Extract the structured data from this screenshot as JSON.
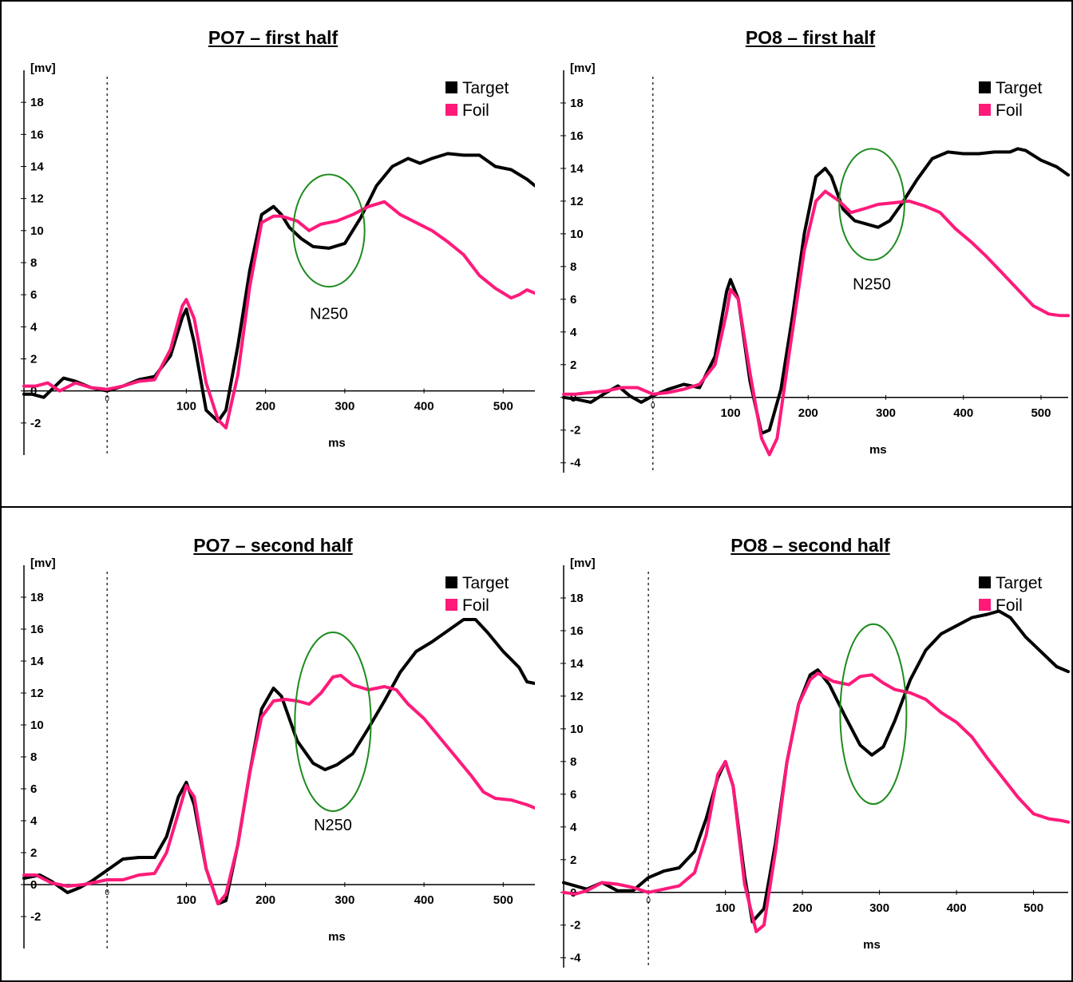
{
  "colors": {
    "target": "#000000",
    "foil": "#ff1a7a",
    "annotation": "#1e8c1e",
    "border": "#000000"
  },
  "chart_data": [
    {
      "type": "line",
      "title": "PO7 – first half",
      "ylabel": "[mv]",
      "xlabel": "ms",
      "xlim": [
        -105,
        540
      ],
      "ylim": [
        -4,
        20
      ],
      "yticks": [
        -2,
        0,
        2,
        4,
        6,
        8,
        10,
        12,
        14,
        16,
        18
      ],
      "yticklabels": [
        "-2",
        "0",
        "2",
        "4",
        "6",
        "8",
        "10",
        "12",
        "14",
        "16",
        "18"
      ],
      "xticks": [
        0,
        100,
        200,
        300,
        400,
        500
      ],
      "xticklabels": [
        "0",
        "100",
        "200",
        "300",
        "400",
        "500"
      ],
      "zero_line_ms": 0,
      "legend": [
        "Target",
        "Foil"
      ],
      "legend_position": "top-right",
      "annotation": {
        "text": "N250",
        "center": [
          280,
          10
        ],
        "rx": 45,
        "ry": 3.5,
        "label_at": [
          280,
          4.5
        ]
      },
      "series": [
        {
          "name": "Target",
          "x": [
            -105,
            -95,
            -80,
            -55,
            -40,
            -20,
            0,
            20,
            40,
            60,
            80,
            95,
            100,
            110,
            125,
            140,
            150,
            165,
            180,
            195,
            210,
            220,
            230,
            245,
            260,
            280,
            300,
            320,
            340,
            360,
            380,
            395,
            410,
            430,
            450,
            470,
            490,
            510,
            530,
            540
          ],
          "y": [
            -0.2,
            -0.2,
            -0.4,
            0.8,
            0.6,
            0.2,
            0.0,
            0.3,
            0.7,
            0.9,
            2.2,
            4.6,
            5.1,
            3.0,
            -1.2,
            -1.9,
            -1.2,
            2.8,
            7.5,
            11.0,
            11.5,
            11.0,
            10.2,
            9.5,
            9.0,
            8.9,
            9.2,
            10.8,
            12.8,
            14.0,
            14.5,
            14.2,
            14.5,
            14.8,
            14.7,
            14.7,
            14.0,
            13.8,
            13.2,
            12.8
          ]
        },
        {
          "name": "Foil",
          "x": [
            -105,
            -90,
            -75,
            -60,
            -40,
            -20,
            0,
            20,
            40,
            60,
            80,
            95,
            100,
            110,
            125,
            140,
            150,
            165,
            180,
            195,
            210,
            220,
            240,
            255,
            270,
            290,
            310,
            330,
            350,
            370,
            390,
            410,
            430,
            450,
            470,
            490,
            510,
            520,
            530,
            540
          ],
          "y": [
            0.3,
            0.3,
            0.5,
            0.0,
            0.5,
            0.2,
            0.1,
            0.3,
            0.6,
            0.7,
            2.6,
            5.3,
            5.7,
            4.5,
            0.5,
            -1.8,
            -2.3,
            1.0,
            6.5,
            10.5,
            10.9,
            10.9,
            10.6,
            10.0,
            10.4,
            10.6,
            11.0,
            11.5,
            11.8,
            11.0,
            10.5,
            10.0,
            9.3,
            8.5,
            7.2,
            6.4,
            5.8,
            6.0,
            6.3,
            6.1
          ]
        }
      ]
    },
    {
      "type": "line",
      "title": "PO8 – first half",
      "ylabel": "[mv]",
      "xlabel": "ms",
      "xlim": [
        -115,
        535
      ],
      "ylim": [
        -4.6,
        20
      ],
      "yticks": [
        -4,
        -2,
        0,
        2,
        4,
        6,
        8,
        10,
        12,
        14,
        16,
        18
      ],
      "yticklabels": [
        "-4",
        "-2",
        "0",
        "2",
        "4",
        "6",
        "8",
        "10",
        "12",
        "14",
        "16",
        "18"
      ],
      "xticks": [
        0,
        100,
        200,
        300,
        400,
        500
      ],
      "xticklabels": [
        "0",
        "100",
        "200",
        "300",
        "400",
        "500"
      ],
      "zero_line_ms": 0,
      "legend": [
        "Target",
        "Foil"
      ],
      "legend_position": "top-right",
      "annotation": {
        "text": "N250",
        "center": [
          282,
          11.8
        ],
        "rx": 42,
        "ry": 3.4,
        "label_at": [
          282,
          6.6
        ]
      },
      "series": [
        {
          "name": "Target",
          "x": [
            -115,
            -100,
            -80,
            -60,
            -45,
            -30,
            -15,
            0,
            20,
            40,
            60,
            80,
            95,
            100,
            110,
            125,
            140,
            150,
            165,
            180,
            195,
            210,
            222,
            230,
            245,
            260,
            275,
            290,
            305,
            320,
            340,
            360,
            380,
            400,
            420,
            440,
            460,
            470,
            480,
            500,
            520,
            535
          ],
          "y": [
            0.0,
            -0.1,
            -0.3,
            0.3,
            0.7,
            0.1,
            -0.3,
            0.1,
            0.5,
            0.8,
            0.6,
            2.5,
            6.5,
            7.2,
            6.0,
            1.0,
            -2.2,
            -2.0,
            0.5,
            5.0,
            10.0,
            13.5,
            14.0,
            13.5,
            11.5,
            10.8,
            10.6,
            10.4,
            10.8,
            11.8,
            13.3,
            14.6,
            15.0,
            14.9,
            14.9,
            15.0,
            15.0,
            15.2,
            15.1,
            14.5,
            14.1,
            13.6
          ]
        },
        {
          "name": "Foil",
          "x": [
            -115,
            -100,
            -80,
            -60,
            -40,
            -20,
            0,
            20,
            40,
            60,
            80,
            95,
            100,
            110,
            125,
            140,
            150,
            160,
            175,
            195,
            210,
            222,
            240,
            255,
            270,
            290,
            310,
            330,
            350,
            370,
            390,
            410,
            430,
            450,
            470,
            490,
            510,
            525,
            535
          ],
          "y": [
            0.2,
            0.2,
            0.3,
            0.4,
            0.6,
            0.6,
            0.2,
            0.3,
            0.5,
            0.8,
            2.0,
            5.2,
            6.6,
            6.0,
            1.5,
            -2.5,
            -3.5,
            -2.5,
            2.5,
            9.0,
            12.0,
            12.6,
            12.0,
            11.3,
            11.5,
            11.8,
            11.9,
            12.0,
            11.7,
            11.3,
            10.3,
            9.5,
            8.6,
            7.6,
            6.6,
            5.6,
            5.1,
            5.0,
            5.0
          ]
        }
      ]
    },
    {
      "type": "line",
      "title": "PO7 – second half",
      "ylabel": "[mv]",
      "xlabel": "ms",
      "xlim": [
        -105,
        540
      ],
      "ylim": [
        -4,
        20
      ],
      "yticks": [
        -2,
        0,
        2,
        4,
        6,
        8,
        10,
        12,
        14,
        16,
        18
      ],
      "yticklabels": [
        "-2",
        "0",
        "2",
        "4",
        "6",
        "8",
        "10",
        "12",
        "14",
        "16",
        "18"
      ],
      "xticks": [
        0,
        100,
        200,
        300,
        400,
        500
      ],
      "xticklabels": [
        "0",
        "100",
        "200",
        "300",
        "400",
        "500"
      ],
      "zero_line_ms": 0,
      "legend": [
        "Target",
        "Foil"
      ],
      "legend_position": "top-right",
      "annotation": {
        "text": "N250",
        "center": [
          285,
          10.2
        ],
        "rx": 48,
        "ry": 5.6,
        "label_at": [
          285,
          3.4
        ]
      },
      "series": [
        {
          "name": "Target",
          "x": [
            -105,
            -85,
            -70,
            -50,
            -35,
            -20,
            0,
            20,
            40,
            60,
            75,
            90,
            100,
            110,
            125,
            140,
            150,
            165,
            180,
            195,
            210,
            220,
            240,
            260,
            275,
            290,
            310,
            330,
            350,
            370,
            390,
            410,
            430,
            450,
            465,
            480,
            500,
            520,
            530,
            540
          ],
          "y": [
            0.4,
            0.6,
            0.2,
            -0.5,
            -0.2,
            0.2,
            0.9,
            1.6,
            1.7,
            1.7,
            3.0,
            5.5,
            6.4,
            5.0,
            1.0,
            -1.2,
            -1.0,
            2.5,
            7.0,
            11.0,
            12.3,
            11.8,
            9.0,
            7.6,
            7.2,
            7.5,
            8.2,
            9.8,
            11.5,
            13.3,
            14.6,
            15.2,
            15.9,
            16.6,
            16.6,
            15.8,
            14.6,
            13.6,
            12.7,
            12.6
          ]
        },
        {
          "name": "Foil",
          "x": [
            -105,
            -90,
            -70,
            -50,
            -30,
            -10,
            0,
            20,
            40,
            60,
            75,
            90,
            100,
            110,
            125,
            140,
            150,
            165,
            180,
            195,
            210,
            225,
            240,
            255,
            270,
            285,
            295,
            310,
            330,
            350,
            365,
            380,
            400,
            420,
            440,
            460,
            475,
            490,
            510,
            530,
            540
          ],
          "y": [
            0.6,
            0.6,
            0.1,
            -0.1,
            0.0,
            0.2,
            0.3,
            0.3,
            0.6,
            0.7,
            2.0,
            4.5,
            6.2,
            5.5,
            1.0,
            -1.2,
            -0.6,
            2.5,
            7.0,
            10.5,
            11.5,
            11.6,
            11.5,
            11.3,
            12.0,
            13.0,
            13.1,
            12.5,
            12.2,
            12.4,
            12.2,
            11.3,
            10.4,
            9.2,
            8.0,
            6.8,
            5.8,
            5.4,
            5.3,
            5.0,
            4.8
          ]
        }
      ]
    },
    {
      "type": "line",
      "title": "PO8 – second half",
      "ylabel": "[mv]",
      "xlabel": "ms",
      "xlim": [
        -110,
        545
      ],
      "ylim": [
        -4.6,
        20
      ],
      "yticks": [
        -4,
        -2,
        0,
        2,
        4,
        6,
        8,
        10,
        12,
        14,
        16,
        18
      ],
      "yticklabels": [
        "-4",
        "-2",
        "0",
        "2",
        "4",
        "6",
        "8",
        "10",
        "12",
        "14",
        "16",
        "18"
      ],
      "xticks": [
        0,
        100,
        200,
        300,
        400,
        500
      ],
      "xticklabels": [
        "0",
        "100",
        "200",
        "300",
        "400",
        "500"
      ],
      "zero_line_ms": 0,
      "legend": [
        "Target",
        "Foil"
      ],
      "legend_position": "top-right",
      "annotation": {
        "text": "",
        "center": [
          292,
          10.9
        ],
        "rx": 43,
        "ry": 5.5,
        "label_at": [
          292,
          4
        ]
      },
      "series": [
        {
          "name": "Target",
          "x": [
            -110,
            -95,
            -80,
            -60,
            -40,
            -20,
            0,
            20,
            40,
            60,
            75,
            90,
            100,
            110,
            125,
            135,
            150,
            165,
            180,
            195,
            210,
            220,
            235,
            255,
            275,
            290,
            305,
            320,
            340,
            360,
            380,
            400,
            420,
            440,
            455,
            470,
            490,
            510,
            530,
            545
          ],
          "y": [
            0.6,
            0.4,
            0.2,
            0.6,
            0.1,
            0.1,
            0.9,
            1.3,
            1.5,
            2.5,
            4.5,
            7.0,
            8.0,
            6.5,
            1.0,
            -1.8,
            -1.0,
            3.0,
            8.0,
            11.5,
            13.3,
            13.6,
            12.7,
            10.8,
            9.0,
            8.4,
            8.9,
            10.5,
            13.0,
            14.8,
            15.8,
            16.3,
            16.8,
            17.0,
            17.2,
            16.8,
            15.6,
            14.7,
            13.8,
            13.5
          ]
        },
        {
          "name": "Foil",
          "x": [
            -110,
            -95,
            -80,
            -60,
            -40,
            -20,
            0,
            20,
            40,
            60,
            75,
            90,
            100,
            110,
            125,
            140,
            150,
            165,
            180,
            195,
            210,
            220,
            240,
            260,
            275,
            290,
            305,
            320,
            340,
            360,
            380,
            400,
            420,
            440,
            460,
            480,
            500,
            520,
            535,
            545
          ],
          "y": [
            0.0,
            -0.1,
            0.1,
            0.6,
            0.5,
            0.3,
            0.0,
            0.2,
            0.4,
            1.2,
            3.5,
            7.2,
            8.0,
            6.5,
            0.5,
            -2.4,
            -2.0,
            2.5,
            8.0,
            11.5,
            13.0,
            13.4,
            12.9,
            12.7,
            13.2,
            13.3,
            12.8,
            12.4,
            12.2,
            11.8,
            11.0,
            10.4,
            9.5,
            8.2,
            7.0,
            5.8,
            4.8,
            4.5,
            4.4,
            4.3
          ]
        }
      ]
    }
  ]
}
